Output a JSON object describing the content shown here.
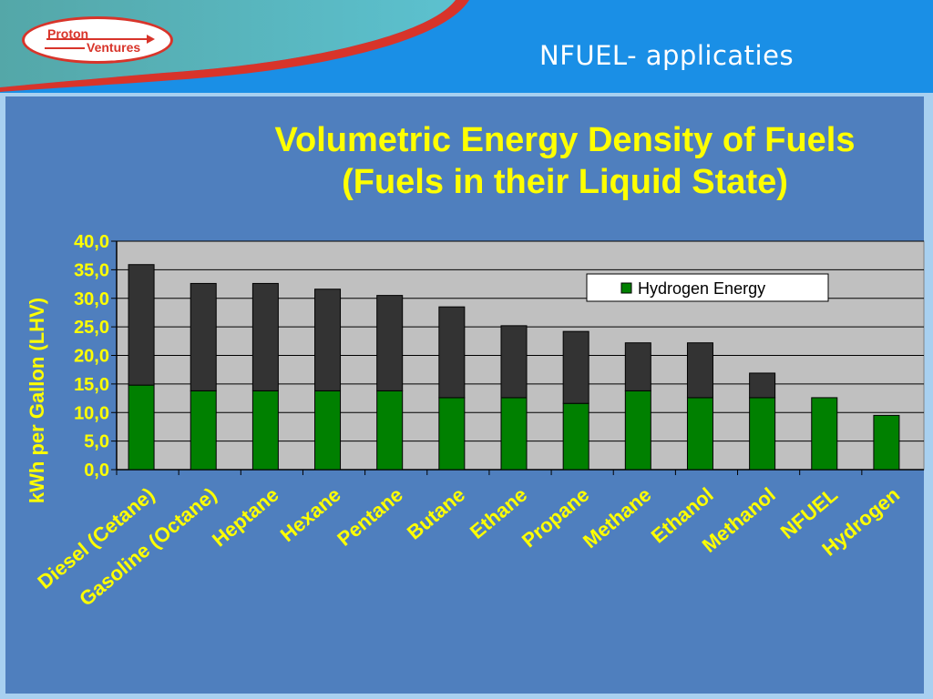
{
  "header": {
    "logo_top": "Proton",
    "logo_bottom": "Ventures",
    "slide_title": "NFUEL- applicaties"
  },
  "colors": {
    "header_blue": "#1a8fe6",
    "panel_blue": "#4f7fbe",
    "title_yellow": "#ffff00",
    "bar_green": "#008000",
    "bar_dark": "#333333",
    "plot_bg": "#c0c0c0",
    "logo_red": "#d8342a"
  },
  "chart_data": {
    "type": "bar",
    "stacked": true,
    "title": "Volumetric Energy Density of Fuels",
    "subtitle": "(Fuels in their Liquid State)",
    "ylabel": "kWh per Gallon (LHV)",
    "ylim": [
      0,
      40
    ],
    "yticks": [
      "0,0",
      "5,0",
      "10,0",
      "15,0",
      "20,0",
      "25,0",
      "30,0",
      "35,0",
      "40,0"
    ],
    "grid": true,
    "legend_position": "top-right",
    "categories": [
      "Diesel (Cetane)",
      "Gasoline (Octane)",
      "Heptane",
      "Hexane",
      "Pentane",
      "Butane",
      "Ethane",
      "Propane",
      "Methane",
      "Ethanol",
      "Methanol",
      "NFUEL",
      "Hydrogen"
    ],
    "series": [
      {
        "name": "Hydrogen Energy",
        "color": "#008000",
        "values": [
          14.8,
          13.8,
          13.8,
          13.8,
          13.8,
          12.6,
          12.6,
          11.6,
          13.8,
          12.6,
          12.6,
          12.6,
          9.5
        ]
      },
      {
        "color": "#333333",
        "values": [
          21.1,
          18.8,
          18.8,
          17.8,
          16.7,
          15.9,
          12.6,
          12.6,
          8.4,
          9.6,
          4.3,
          0,
          0
        ]
      }
    ]
  }
}
